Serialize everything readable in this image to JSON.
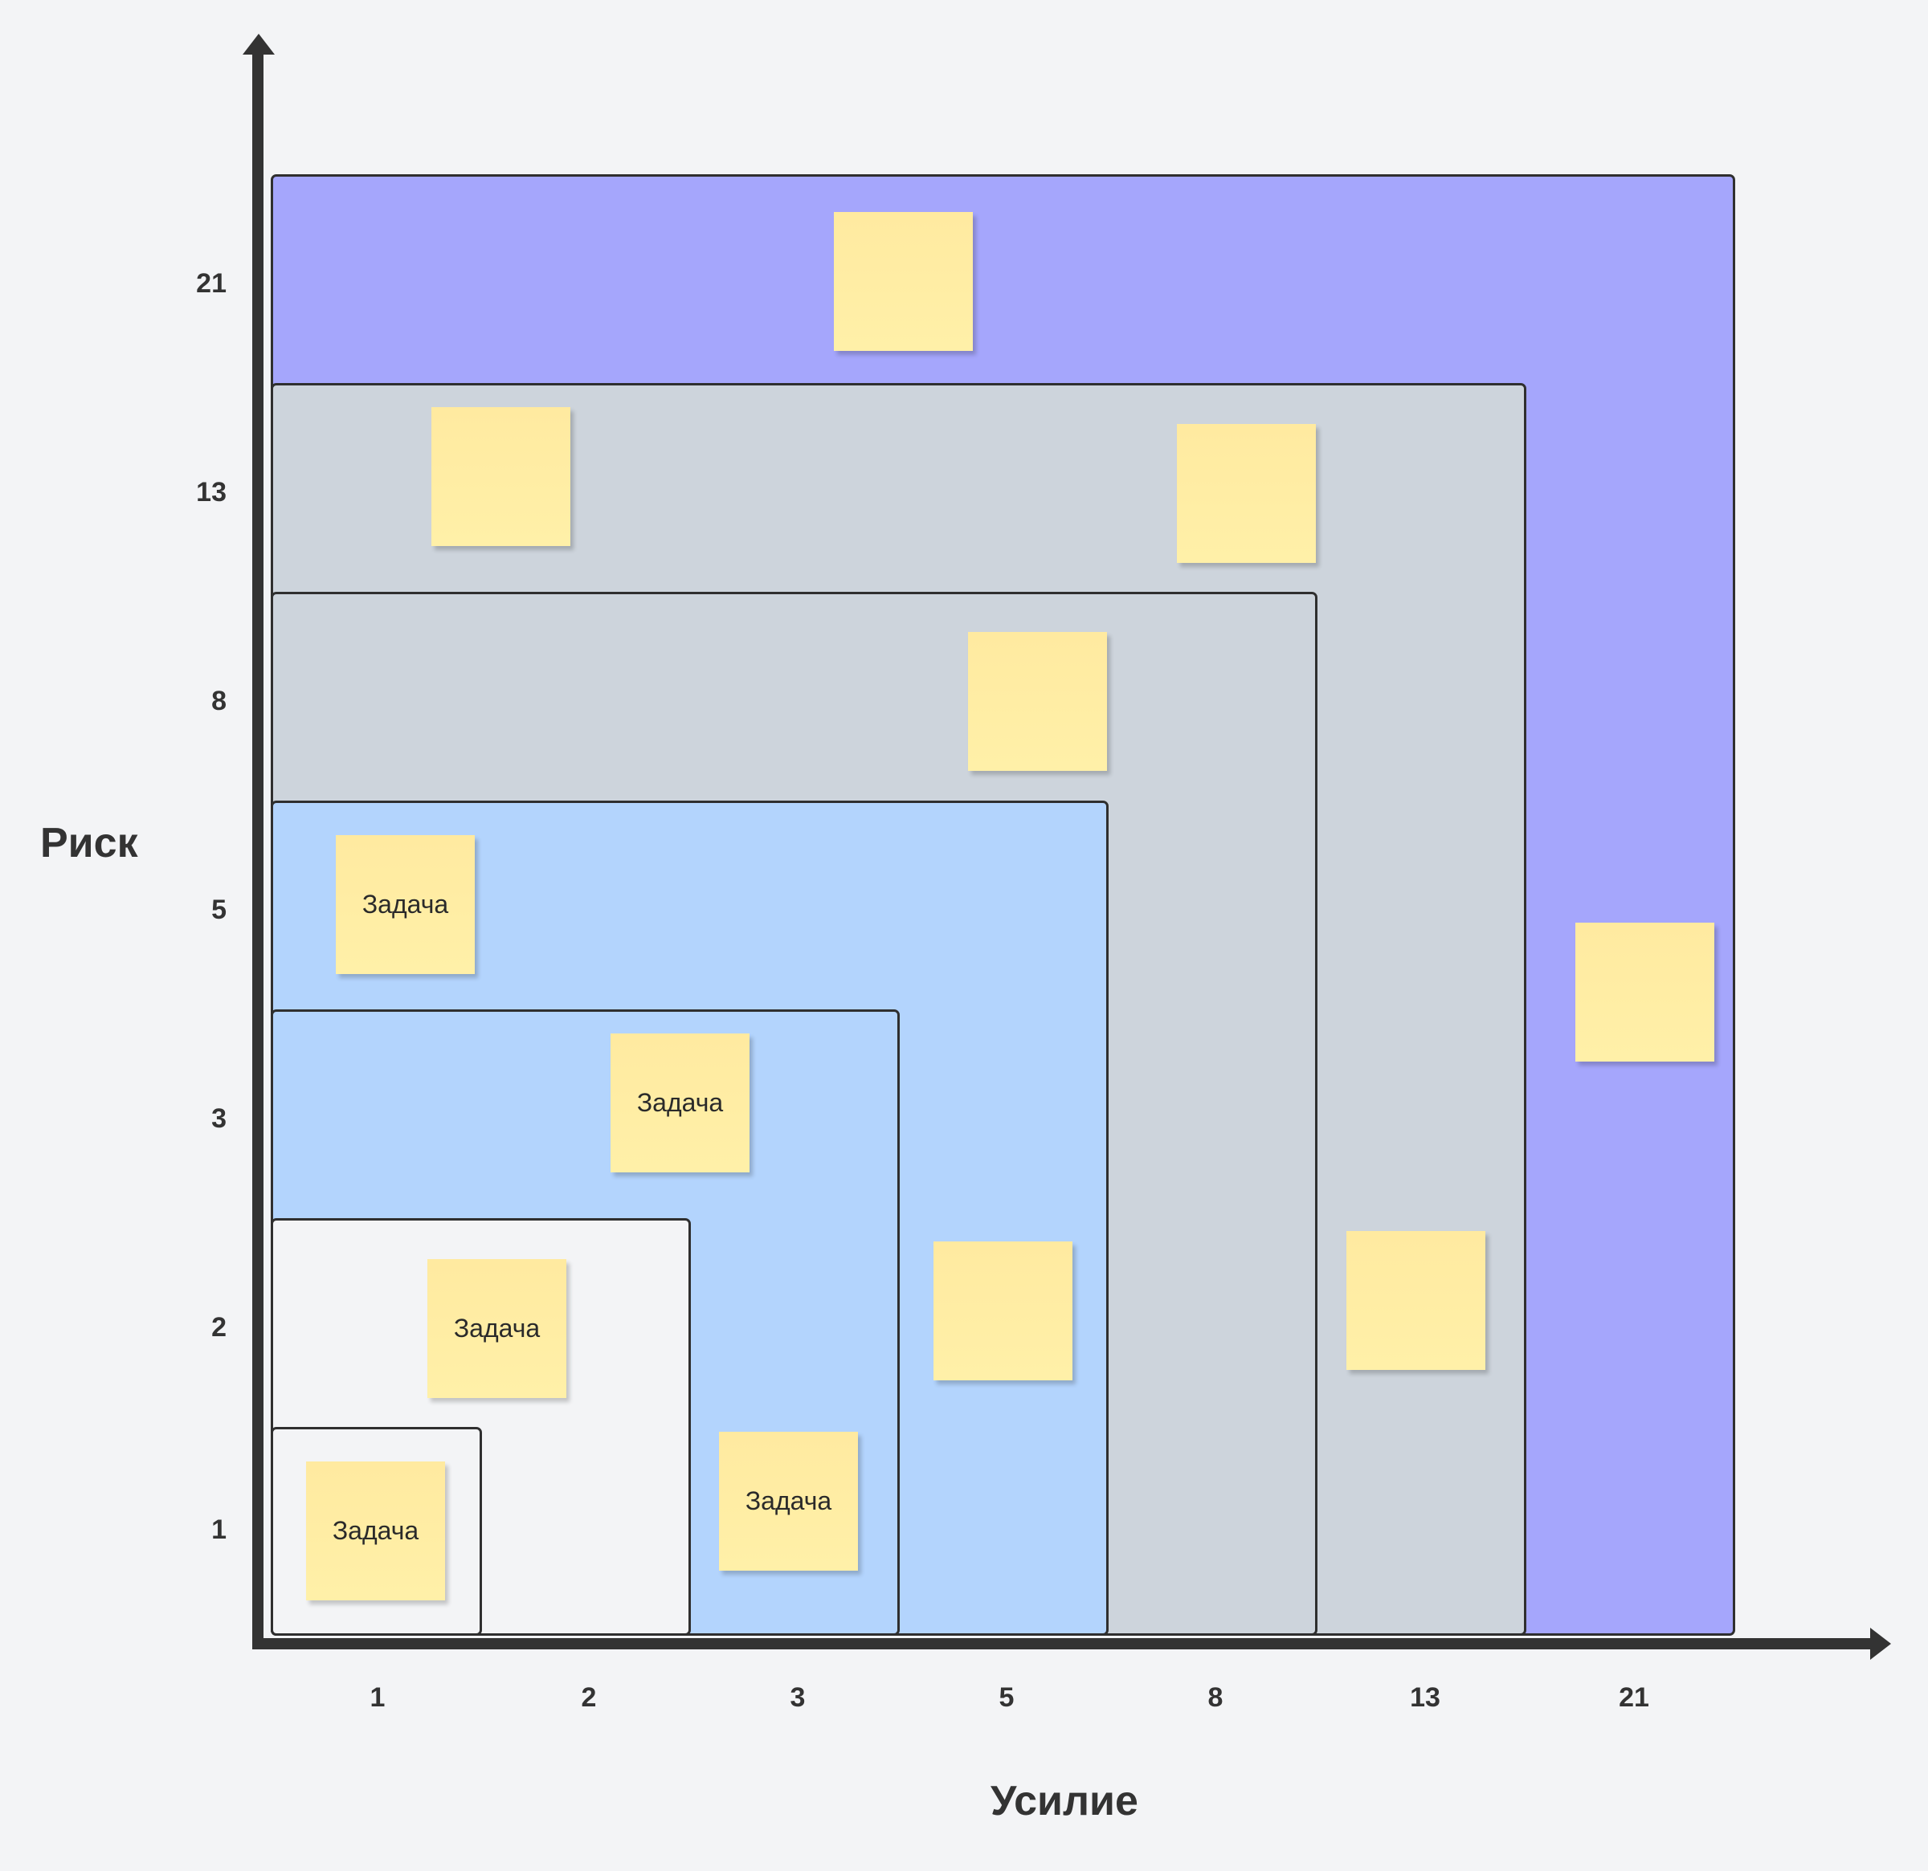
{
  "colors": {
    "background": "#f3f4f6",
    "zone_purple": "#a5a6fc",
    "zone_gray": "#cdd4dc",
    "zone_blue": "#b3d4fd",
    "zone_light": "#f3f4f6",
    "sticky": "#fff0a8",
    "axis": "#333333"
  },
  "axes": {
    "y_title": "Риск",
    "x_title": "Усилие",
    "y_ticks": [
      "21",
      "13",
      "8",
      "5",
      "3",
      "2",
      "1"
    ],
    "x_ticks": [
      "1",
      "2",
      "3",
      "5",
      "8",
      "13",
      "21"
    ]
  },
  "stickies": [
    {
      "label": ""
    },
    {
      "label": ""
    },
    {
      "label": ""
    },
    {
      "label": ""
    },
    {
      "label": "Задача"
    },
    {
      "label": "Задача"
    },
    {
      "label": "Задача"
    },
    {
      "label": "Задача"
    },
    {
      "label": "Задача"
    },
    {
      "label": ""
    },
    {
      "label": ""
    },
    {
      "label": ""
    }
  ]
}
